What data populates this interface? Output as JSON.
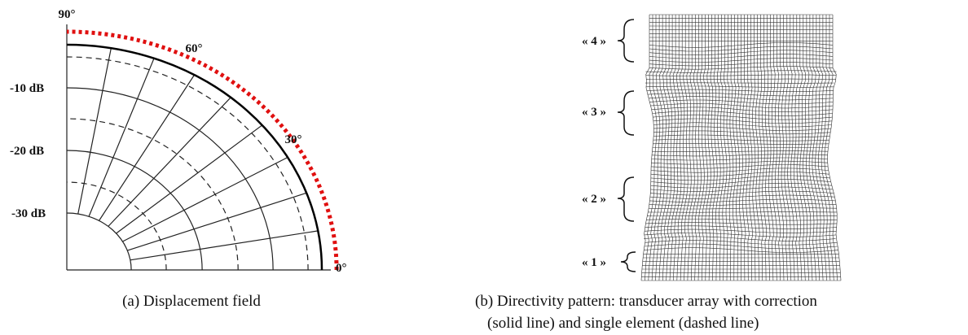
{
  "panel_left": {
    "angle_labels": [
      "90°",
      "60°",
      "30°",
      "0°"
    ],
    "level_labels": [
      "-10 dB",
      "-20 dB",
      "-30 dB"
    ],
    "caption": "(a) Displacement field"
  },
  "panel_right": {
    "zone_labels": [
      "« 4 »",
      "« 3 »",
      "« 2 »",
      "« 1 »"
    ],
    "caption": [
      "(b) Directivity pattern: transducer array with correction",
      "(solid line) and single element (dashed line)"
    ]
  }
}
